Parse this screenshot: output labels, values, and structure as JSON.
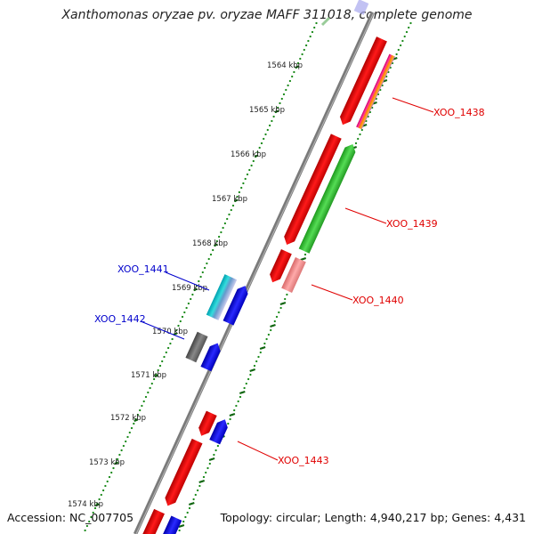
{
  "title": "Xanthomonas oryzae pv. oryzae MAFF 311018, complete genome",
  "accession": "Accession: NC_007705",
  "topology": "Topology: circular; Length: 4,940,217 bp; Genes: 4,431",
  "ticks": [
    "1564 kbp",
    "1565 kbp",
    "1566 kbp",
    "1567 kbp",
    "1568 kbp",
    "1569 kbp",
    "1570 kbp",
    "1571 kbp",
    "1572 kbp",
    "1573 kbp",
    "1574 kbp"
  ],
  "gene_labels": [
    {
      "text": "XOO_1438",
      "color": "#e00000"
    },
    {
      "text": "XOO_1439",
      "color": "#e00000"
    },
    {
      "text": "XOO_1440",
      "color": "#e00000"
    },
    {
      "text": "XOO_1441",
      "color": "#0000cc"
    },
    {
      "text": "XOO_1442",
      "color": "#0000cc"
    },
    {
      "text": "XOO_1443",
      "color": "#e00000"
    }
  ],
  "colors": {
    "backbone": "#7a7a7a",
    "ring_dots": "#1a8a1a",
    "red_feature": "#ee0000",
    "green_feature": "#33bb33",
    "blue_feature": "#0000ee",
    "cyan_feature": "#22bbbb",
    "gray_feature": "#666666",
    "pink_feature": "#ee8888"
  }
}
